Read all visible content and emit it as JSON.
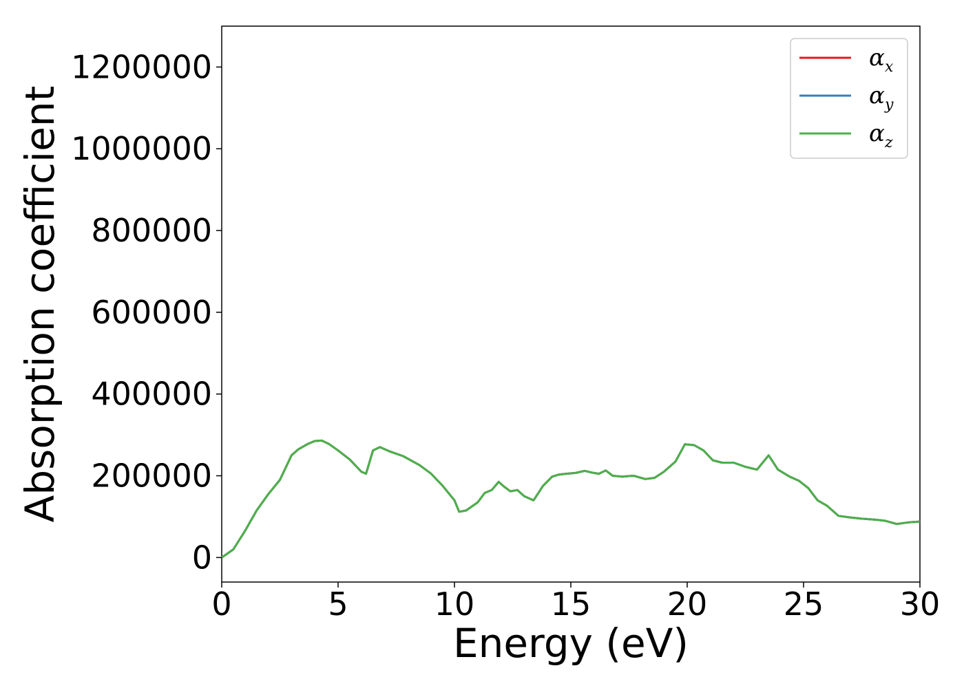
{
  "chart_data": {
    "type": "line",
    "title": "",
    "xlabel": "Energy (eV)",
    "ylabel": "Absorption coefficient",
    "xlim": [
      0,
      30
    ],
    "ylim": [
      -60000,
      1300000
    ],
    "grid": false,
    "legend_position": "top-right",
    "x_ticks": [
      0,
      5,
      10,
      15,
      20,
      25,
      30
    ],
    "x_tick_labels": [
      "0",
      "5",
      "10",
      "15",
      "20",
      "25",
      "30"
    ],
    "y_ticks": [
      0,
      200000,
      400000,
      600000,
      800000,
      1000000,
      1200000
    ],
    "y_tick_labels": [
      "0",
      "200000",
      "400000",
      "600000",
      "800000",
      "1000000",
      "1200000"
    ],
    "series": [
      {
        "name": "αx",
        "color": "#e41a1c",
        "x": [
          0,
          0.5,
          1.0,
          1.5,
          2.0,
          2.5,
          3.0,
          3.3,
          3.7,
          4.0,
          4.3,
          4.6,
          5.0,
          5.5,
          6.0,
          6.2,
          6.5,
          6.8,
          7.2,
          7.8,
          8.5,
          9.0,
          9.5,
          10.0,
          10.2,
          10.5,
          11.0,
          11.3,
          11.6,
          11.9,
          12.1,
          12.4,
          12.7,
          13.0,
          13.4,
          13.8,
          14.2,
          14.5,
          14.8,
          15.2,
          15.6,
          15.9,
          16.2,
          16.5,
          16.8,
          17.2,
          17.7,
          18.2,
          18.6,
          19.0,
          19.5,
          19.9,
          20.3,
          20.7,
          21.1,
          21.5,
          22.0,
          22.5,
          23.0,
          23.5,
          23.9,
          24.4,
          24.8,
          25.2,
          25.6,
          26.0,
          26.5,
          27.0,
          27.5,
          28.0,
          28.5,
          29.0,
          29.5,
          30.0
        ],
        "y": [
          0,
          20000,
          65000,
          115000,
          155000,
          190000,
          250000,
          265000,
          278000,
          285000,
          286000,
          278000,
          262000,
          240000,
          210000,
          205000,
          262000,
          270000,
          260000,
          248000,
          226000,
          205000,
          175000,
          140000,
          112000,
          115000,
          135000,
          158000,
          165000,
          185000,
          175000,
          162000,
          165000,
          150000,
          140000,
          175000,
          198000,
          203000,
          205000,
          207000,
          212000,
          208000,
          205000,
          213000,
          200000,
          198000,
          200000,
          192000,
          195000,
          210000,
          235000,
          277000,
          275000,
          262000,
          238000,
          232000,
          232000,
          222000,
          215000,
          250000,
          215000,
          198000,
          188000,
          170000,
          140000,
          127000,
          102000,
          98000,
          95000,
          93000,
          90000,
          82000,
          86000,
          88000
        ]
      },
      {
        "name": "αy",
        "color": "#377eb8",
        "x": [
          0,
          0.5,
          1.0,
          1.5,
          2.0,
          2.5,
          3.0,
          3.3,
          3.7,
          4.0,
          4.3,
          4.6,
          5.0,
          5.5,
          6.0,
          6.2,
          6.5,
          6.8,
          7.2,
          7.8,
          8.5,
          9.0,
          9.5,
          10.0,
          10.2,
          10.5,
          11.0,
          11.3,
          11.6,
          11.9,
          12.1,
          12.4,
          12.7,
          13.0,
          13.4,
          13.8,
          14.2,
          14.5,
          14.8,
          15.2,
          15.6,
          15.9,
          16.2,
          16.5,
          16.8,
          17.2,
          17.7,
          18.2,
          18.6,
          19.0,
          19.5,
          19.9,
          20.3,
          20.7,
          21.1,
          21.5,
          22.0,
          22.5,
          23.0,
          23.5,
          23.9,
          24.4,
          24.8,
          25.2,
          25.6,
          26.0,
          26.5,
          27.0,
          27.5,
          28.0,
          28.5,
          29.0,
          29.5,
          30.0
        ],
        "y": [
          0,
          20000,
          65000,
          115000,
          155000,
          190000,
          250000,
          265000,
          278000,
          285000,
          286000,
          278000,
          262000,
          240000,
          210000,
          205000,
          262000,
          270000,
          260000,
          248000,
          226000,
          205000,
          175000,
          140000,
          112000,
          115000,
          135000,
          158000,
          165000,
          185000,
          175000,
          162000,
          165000,
          150000,
          140000,
          175000,
          198000,
          203000,
          205000,
          207000,
          212000,
          208000,
          205000,
          213000,
          200000,
          198000,
          200000,
          192000,
          195000,
          210000,
          235000,
          277000,
          275000,
          262000,
          238000,
          232000,
          232000,
          222000,
          215000,
          250000,
          215000,
          198000,
          188000,
          170000,
          140000,
          127000,
          102000,
          98000,
          95000,
          93000,
          90000,
          82000,
          86000,
          88000
        ]
      },
      {
        "name": "αz",
        "color": "#4daf4a",
        "x": [
          0,
          0.5,
          1.0,
          1.5,
          2.0,
          2.5,
          3.0,
          3.3,
          3.7,
          4.0,
          4.3,
          4.6,
          5.0,
          5.5,
          6.0,
          6.2,
          6.5,
          6.8,
          7.2,
          7.8,
          8.5,
          9.0,
          9.5,
          10.0,
          10.2,
          10.5,
          11.0,
          11.3,
          11.6,
          11.9,
          12.1,
          12.4,
          12.7,
          13.0,
          13.4,
          13.8,
          14.2,
          14.5,
          14.8,
          15.2,
          15.6,
          15.9,
          16.2,
          16.5,
          16.8,
          17.2,
          17.7,
          18.2,
          18.6,
          19.0,
          19.5,
          19.9,
          20.3,
          20.7,
          21.1,
          21.5,
          22.0,
          22.5,
          23.0,
          23.5,
          23.9,
          24.4,
          24.8,
          25.2,
          25.6,
          26.0,
          26.5,
          27.0,
          27.5,
          28.0,
          28.5,
          29.0,
          29.5,
          30.0
        ],
        "y": [
          0,
          20000,
          65000,
          115000,
          155000,
          190000,
          250000,
          265000,
          278000,
          285000,
          286000,
          278000,
          262000,
          240000,
          210000,
          205000,
          262000,
          270000,
          260000,
          248000,
          226000,
          205000,
          175000,
          140000,
          112000,
          115000,
          135000,
          158000,
          165000,
          185000,
          175000,
          162000,
          165000,
          150000,
          140000,
          175000,
          198000,
          203000,
          205000,
          207000,
          212000,
          208000,
          205000,
          213000,
          200000,
          198000,
          200000,
          192000,
          195000,
          210000,
          235000,
          277000,
          275000,
          262000,
          238000,
          232000,
          232000,
          222000,
          215000,
          250000,
          215000,
          198000,
          188000,
          170000,
          140000,
          127000,
          102000,
          98000,
          95000,
          93000,
          90000,
          82000,
          86000,
          88000
        ]
      }
    ],
    "legend": [
      {
        "symbol": "α",
        "sub": "x",
        "color": "#e41a1c"
      },
      {
        "symbol": "α",
        "sub": "y",
        "color": "#377eb8"
      },
      {
        "symbol": "α",
        "sub": "z",
        "color": "#4daf4a"
      }
    ]
  }
}
